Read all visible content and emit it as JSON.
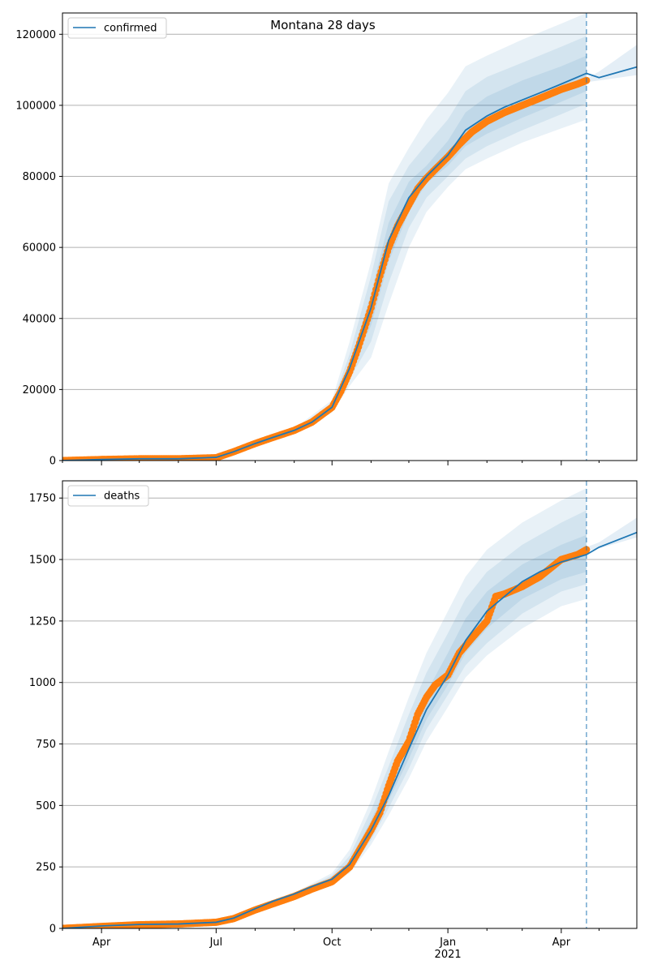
{
  "figure": {
    "title": "Montana 28 days"
  },
  "colors": {
    "model": "#1f77b4",
    "observed": "#ff7f0e",
    "band": "#1f77b4",
    "grid": "#b0b0b0",
    "axis": "#000000",
    "forecast_line": "#1f77b4"
  },
  "chart_data": [
    {
      "type": "line",
      "legend": [
        "confirmed"
      ],
      "legend_placement": "upper left",
      "xlim": [
        "2020-03-01",
        "2021-05-31"
      ],
      "ylim": [
        0,
        126000
      ],
      "yticks": [
        0,
        20000,
        40000,
        60000,
        80000,
        100000,
        120000
      ],
      "grid": "horizontal",
      "forecast_date": "2021-04-21",
      "model": {
        "x": [
          "2020-03-01",
          "2020-04-01",
          "2020-05-01",
          "2020-06-01",
          "2020-07-01",
          "2020-07-15",
          "2020-08-01",
          "2020-08-15",
          "2020-09-01",
          "2020-09-15",
          "2020-10-01",
          "2020-10-15",
          "2020-11-01",
          "2020-11-15",
          "2020-12-01",
          "2020-12-15",
          "2021-01-01",
          "2021-01-15",
          "2021-02-01",
          "2021-02-15",
          "2021-03-01",
          "2021-03-15",
          "2021-04-01",
          "2021-04-21",
          "2021-05-01",
          "2021-05-31"
        ],
        "y": [
          0,
          300,
          500,
          500,
          900,
          2500,
          4800,
          6500,
          8500,
          10800,
          15000,
          26000,
          43000,
          62000,
          74000,
          80000,
          86000,
          93000,
          97000,
          99500,
          101500,
          103500,
          106000,
          109000,
          107800,
          110800
        ]
      },
      "bands": [
        {
          "x": [
            "2020-09-01",
            "2020-10-01",
            "2020-10-15",
            "2020-11-01",
            "2020-11-15",
            "2020-12-01",
            "2020-12-15",
            "2021-01-01",
            "2021-01-15",
            "2021-02-01",
            "2021-03-01",
            "2021-04-01",
            "2021-04-21"
          ],
          "lower": [
            8500,
            15000,
            25000,
            38000,
            56000,
            70000,
            78000,
            83000,
            88500,
            92000,
            96500,
            101000,
            104000
          ],
          "upper": [
            8500,
            15000,
            27000,
            47000,
            67000,
            78500,
            83000,
            90000,
            98000,
            102500,
            107000,
            111000,
            114000
          ]
        },
        {
          "x": [
            "2020-09-01",
            "2020-10-01",
            "2020-10-15",
            "2020-11-01",
            "2020-11-15",
            "2020-12-01",
            "2020-12-15",
            "2021-01-01",
            "2021-01-15",
            "2021-02-01",
            "2021-03-01",
            "2021-04-01",
            "2021-04-21"
          ],
          "lower": [
            8200,
            14200,
            23000,
            33500,
            50000,
            65500,
            74000,
            80000,
            85000,
            88500,
            93000,
            97500,
            100500
          ],
          "upper": [
            8800,
            16000,
            30000,
            52000,
            73000,
            83000,
            89000,
            96000,
            104000,
            108000,
            112000,
            116500,
            119500
          ]
        },
        {
          "x": [
            "2020-09-01",
            "2020-10-01",
            "2020-10-15",
            "2020-11-01",
            "2020-11-15",
            "2020-12-01",
            "2020-12-15",
            "2021-01-01",
            "2021-01-15",
            "2021-02-01",
            "2021-03-01",
            "2021-04-01",
            "2021-04-21"
          ],
          "lower": [
            8000,
            13500,
            21000,
            29000,
            44000,
            60000,
            70000,
            77000,
            82000,
            85000,
            89500,
            93500,
            96000
          ],
          "upper": [
            9000,
            17000,
            33500,
            56000,
            78000,
            88000,
            96000,
            103500,
            111000,
            114000,
            118500,
            123000,
            126000
          ]
        }
      ],
      "forecast_band": {
        "x": [
          "2021-04-21",
          "2021-05-01",
          "2021-05-31"
        ],
        "lower": [
          106500,
          107000,
          108500
        ],
        "upper": [
          107500,
          109500,
          117000
        ]
      },
      "observed": {
        "x": [
          "2020-03-01",
          "2020-04-01",
          "2020-05-01",
          "2020-06-01",
          "2020-07-01",
          "2020-07-15",
          "2020-08-01",
          "2020-08-15",
          "2020-09-01",
          "2020-09-15",
          "2020-10-01",
          "2020-10-08",
          "2020-10-15",
          "2020-10-22",
          "2020-11-01",
          "2020-11-08",
          "2020-11-15",
          "2020-11-22",
          "2020-12-01",
          "2020-12-08",
          "2020-12-15",
          "2020-12-22",
          "2021-01-01",
          "2021-01-10",
          "2021-01-20",
          "2021-02-01",
          "2021-02-15",
          "2021-03-01",
          "2021-03-15",
          "2021-04-01",
          "2021-04-14",
          "2021-04-21"
        ],
        "y": [
          0,
          300,
          500,
          500,
          800,
          2500,
          4800,
          6500,
          8500,
          10800,
          15000,
          19500,
          25000,
          32000,
          43000,
          52000,
          60000,
          66000,
          72000,
          76500,
          79500,
          82000,
          85500,
          89000,
          92500,
          95500,
          98000,
          100000,
          102000,
          104500,
          106000,
          107000
        ]
      }
    },
    {
      "type": "line",
      "legend": [
        "deaths"
      ],
      "legend_placement": "upper left",
      "xlim": [
        "2020-03-01",
        "2021-05-31"
      ],
      "ylim": [
        0,
        1820
      ],
      "yticks": [
        0,
        250,
        500,
        750,
        1000,
        1250,
        1500,
        1750
      ],
      "grid": "horizontal",
      "forecast_date": "2021-04-21",
      "xtick_labels": [
        "Apr",
        "Jul",
        "Oct",
        "Jan\n2021",
        "Apr"
      ],
      "model": {
        "x": [
          "2020-03-01",
          "2020-04-01",
          "2020-05-01",
          "2020-06-01",
          "2020-07-01",
          "2020-07-15",
          "2020-08-01",
          "2020-08-15",
          "2020-09-01",
          "2020-09-15",
          "2020-10-01",
          "2020-10-15",
          "2020-11-01",
          "2020-11-15",
          "2020-12-01",
          "2020-12-15",
          "2021-01-01",
          "2021-01-15",
          "2021-02-01",
          "2021-02-15",
          "2021-03-01",
          "2021-03-15",
          "2021-04-01",
          "2021-04-21",
          "2021-05-01",
          "2021-05-31"
        ],
        "y": [
          0,
          10,
          16,
          18,
          25,
          42,
          80,
          110,
          140,
          170,
          200,
          260,
          400,
          540,
          730,
          890,
          1030,
          1170,
          1290,
          1350,
          1410,
          1450,
          1490,
          1520,
          1550,
          1610
        ]
      },
      "bands": [
        {
          "x": [
            "2020-09-01",
            "2020-10-01",
            "2020-10-15",
            "2020-11-01",
            "2020-11-15",
            "2020-12-01",
            "2020-12-15",
            "2021-01-01",
            "2021-01-15",
            "2021-02-01",
            "2021-03-01",
            "2021-04-01",
            "2021-04-21"
          ],
          "lower": [
            140,
            195,
            245,
            380,
            520,
            690,
            850,
            990,
            1120,
            1220,
            1340,
            1420,
            1450
          ],
          "upper": [
            140,
            205,
            275,
            440,
            600,
            800,
            960,
            1120,
            1260,
            1370,
            1480,
            1560,
            1600
          ]
        },
        {
          "x": [
            "2020-09-01",
            "2020-10-01",
            "2020-10-15",
            "2020-11-01",
            "2020-11-15",
            "2020-12-01",
            "2020-12-15",
            "2021-01-01",
            "2021-01-15",
            "2021-02-01",
            "2021-03-01",
            "2021-04-01",
            "2021-04-21"
          ],
          "lower": [
            138,
            190,
            235,
            360,
            490,
            650,
            810,
            950,
            1070,
            1160,
            1280,
            1370,
            1400
          ],
          "upper": [
            142,
            215,
            295,
            480,
            660,
            870,
            1040,
            1200,
            1340,
            1450,
            1560,
            1650,
            1700
          ]
        },
        {
          "x": [
            "2020-09-01",
            "2020-10-01",
            "2020-10-15",
            "2020-11-01",
            "2020-11-15",
            "2020-12-01",
            "2020-12-15",
            "2021-01-01",
            "2021-01-15",
            "2021-02-01",
            "2021-03-01",
            "2021-04-01",
            "2021-04-21"
          ],
          "lower": [
            135,
            185,
            225,
            340,
            460,
            610,
            760,
            900,
            1020,
            1110,
            1220,
            1310,
            1340
          ],
          "upper": [
            145,
            225,
            320,
            520,
            720,
            940,
            1120,
            1290,
            1430,
            1540,
            1650,
            1740,
            1790
          ]
        }
      ],
      "forecast_band": {
        "x": [
          "2021-04-21",
          "2021-05-01",
          "2021-05-31"
        ],
        "lower": [
          1535,
          1545,
          1590
        ],
        "upper": [
          1550,
          1570,
          1670
        ]
      },
      "observed": {
        "x": [
          "2020-03-01",
          "2020-04-01",
          "2020-05-01",
          "2020-06-01",
          "2020-07-01",
          "2020-07-15",
          "2020-08-01",
          "2020-08-15",
          "2020-09-01",
          "2020-09-15",
          "2020-10-01",
          "2020-10-15",
          "2020-11-01",
          "2020-11-08",
          "2020-11-15",
          "2020-11-22",
          "2020-12-01",
          "2020-12-08",
          "2020-12-15",
          "2020-12-22",
          "2021-01-01",
          "2021-01-10",
          "2021-01-20",
          "2021-02-01",
          "2021-02-08",
          "2021-02-15",
          "2021-03-01",
          "2021-03-15",
          "2021-04-01",
          "2021-04-14",
          "2021-04-21"
        ],
        "y": [
          0,
          8,
          15,
          18,
          25,
          40,
          75,
          100,
          130,
          160,
          190,
          250,
          400,
          470,
          580,
          680,
          760,
          870,
          940,
          990,
          1030,
          1120,
          1180,
          1250,
          1350,
          1360,
          1390,
          1430,
          1500,
          1520,
          1540
        ]
      }
    }
  ]
}
